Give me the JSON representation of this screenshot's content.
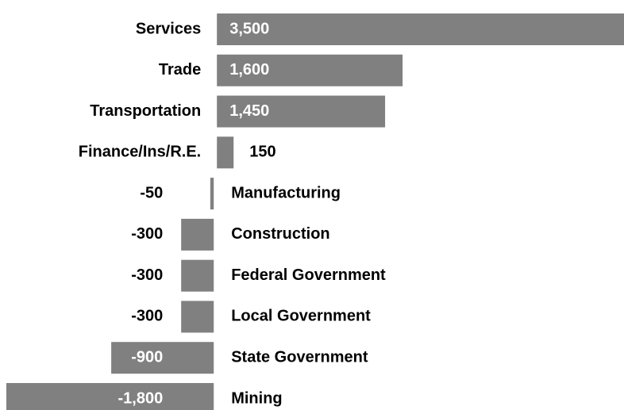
{
  "chart_data": {
    "type": "bar",
    "orientation": "horizontal",
    "color": "#808080",
    "categories": [
      "Services",
      "Trade",
      "Transportation",
      "Finance/Ins/R.E.",
      "Manufacturing",
      "Construction",
      "Federal Government",
      "Local Government",
      "State Government",
      "Mining"
    ],
    "values": [
      3500,
      1600,
      1450,
      150,
      -50,
      -300,
      -300,
      -300,
      -900,
      -1800
    ],
    "value_labels": [
      "3,500",
      "1,600",
      "1,450",
      "150",
      "-50",
      "-300",
      "-300",
      "-300",
      "-900",
      "-1,800"
    ]
  }
}
